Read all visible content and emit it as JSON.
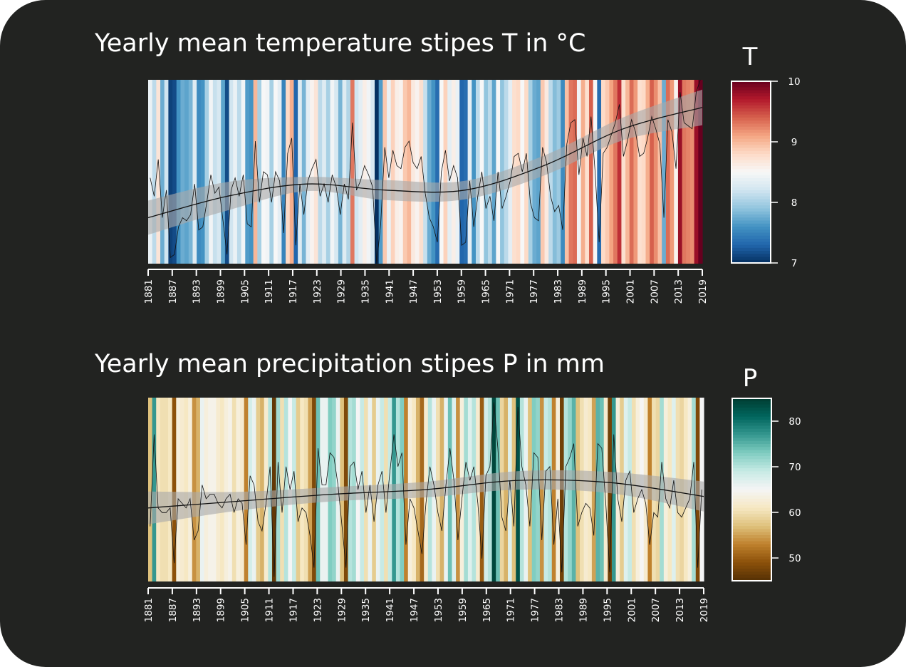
{
  "chart_data": [
    {
      "type": "heatmap",
      "variant": "climate-stripes-with-line",
      "title": "Yearly mean temperature stipes T in °C",
      "legend_title": "T",
      "year_start": 1881,
      "year_end": 2019,
      "ylim": [
        7,
        10
      ],
      "legend_ticks": [
        7,
        8,
        9,
        10
      ],
      "x_tick_labels": [
        "1881",
        "1887",
        "1893",
        "1899",
        "1905",
        "1911",
        "1917",
        "1923",
        "1929",
        "1935",
        "1941",
        "1947",
        "1953",
        "1959",
        "1965",
        "1971",
        "1977",
        "1983",
        "1989",
        "1995",
        "2001",
        "2007",
        "2013",
        "2019"
      ],
      "palette": [
        "#2166ac",
        "#4393c3",
        "#92c5de",
        "#d1e5f0",
        "#f7f7f7",
        "#fddbc7",
        "#f4a582",
        "#d6604d",
        "#b2182b"
      ],
      "palette_extremes": [
        "#053061",
        "#67001f"
      ],
      "values": [
        8.4,
        8.1,
        8.7,
        7.75,
        8.2,
        7.1,
        7.15,
        7.6,
        7.75,
        7.7,
        7.8,
        8.3,
        7.55,
        7.6,
        8.0,
        8.45,
        8.15,
        8.25,
        7.7,
        7.15,
        8.2,
        8.4,
        8.1,
        8.45,
        7.65,
        7.6,
        9.0,
        8.0,
        8.5,
        8.45,
        8.0,
        8.5,
        8.35,
        7.5,
        8.8,
        9.05,
        7.3,
        8.3,
        7.8,
        8.35,
        8.55,
        8.7,
        8.1,
        8.3,
        8.0,
        8.45,
        8.25,
        7.8,
        8.3,
        8.05,
        9.3,
        8.2,
        8.35,
        8.6,
        8.45,
        8.25,
        7.0,
        7.65,
        8.9,
        8.4,
        8.85,
        8.6,
        8.55,
        8.9,
        9.0,
        8.65,
        8.55,
        8.75,
        8.15,
        7.75,
        7.6,
        7.35,
        8.5,
        8.85,
        8.35,
        8.6,
        8.4,
        7.3,
        7.35,
        8.35,
        7.6,
        8.1,
        8.5,
        7.9,
        8.1,
        7.7,
        8.5,
        7.9,
        8.1,
        8.35,
        8.75,
        8.8,
        8.5,
        8.8,
        8.0,
        7.75,
        7.7,
        8.9,
        8.65,
        8.1,
        7.85,
        7.95,
        7.55,
        8.95,
        9.3,
        9.35,
        8.45,
        9.05,
        8.75,
        9.4,
        8.5,
        7.35,
        8.8,
        8.9,
        9.1,
        9.3,
        9.6,
        8.75,
        9.0,
        9.35,
        9.15,
        8.75,
        8.8,
        9.05,
        9.4,
        9.2,
        8.95,
        7.75,
        9.35,
        9.15,
        8.55,
        9.8,
        9.3,
        9.25,
        9.2,
        9.8,
        10.0
      ],
      "trend": [
        7.75,
        8.1,
        8.3,
        8.2,
        8.2,
        8.6,
        9.2,
        9.55
      ]
    },
    {
      "type": "heatmap",
      "variant": "climate-stripes-with-line",
      "title": "Yearly mean precipitation stipes P in mm",
      "legend_title": "P",
      "year_start": 1881,
      "year_end": 2019,
      "ylim": [
        45,
        85
      ],
      "legend_ticks": [
        50,
        60,
        70,
        80
      ],
      "x_tick_labels": [
        "1881",
        "1887",
        "1893",
        "1899",
        "1905",
        "1911",
        "1917",
        "1923",
        "1929",
        "1935",
        "1941",
        "1947",
        "1953",
        "1959",
        "1965",
        "1971",
        "1977",
        "1983",
        "1989",
        "1995",
        "2001",
        "2007",
        "2013",
        "2019"
      ],
      "palette": [
        "#8c510a",
        "#bf812d",
        "#dfc27d",
        "#f6e8c3",
        "#f5f5f5",
        "#c7eae5",
        "#80cdc1",
        "#35978f",
        "#01665e"
      ],
      "palette_extremes": [
        "#543005",
        "#003c30"
      ],
      "values": [
        57,
        77,
        61,
        60,
        60,
        61,
        49,
        63,
        62,
        61,
        63,
        54,
        56,
        66,
        63,
        64,
        64,
        62,
        61,
        63,
        64,
        60,
        63,
        62,
        53,
        68,
        66,
        58,
        56,
        62,
        70,
        46,
        71,
        60,
        70,
        65,
        69,
        58,
        61,
        60,
        55,
        48,
        74,
        66,
        66,
        73,
        72,
        66,
        57,
        48,
        70,
        71,
        65,
        69,
        60,
        66,
        58,
        66,
        69,
        60,
        69,
        77,
        70,
        73,
        53,
        63,
        61,
        56,
        51,
        62,
        70,
        66,
        60,
        56,
        66,
        74,
        67,
        54,
        63,
        71,
        67,
        70,
        62,
        50,
        68,
        70,
        84,
        74,
        59,
        56,
        67,
        57,
        83,
        70,
        66,
        57,
        73,
        72,
        54,
        69,
        70,
        53,
        63,
        47,
        70,
        72,
        75,
        57,
        60,
        62,
        61,
        55,
        75,
        74,
        62,
        47,
        77,
        63,
        58,
        67,
        69,
        60,
        63,
        65,
        62,
        53,
        60,
        59,
        71,
        63,
        61,
        67,
        60,
        59,
        61,
        63,
        71,
        48,
        65
      ],
      "trend": [
        61,
        62.5,
        64,
        65,
        67,
        66.5,
        63.5
      ]
    }
  ]
}
